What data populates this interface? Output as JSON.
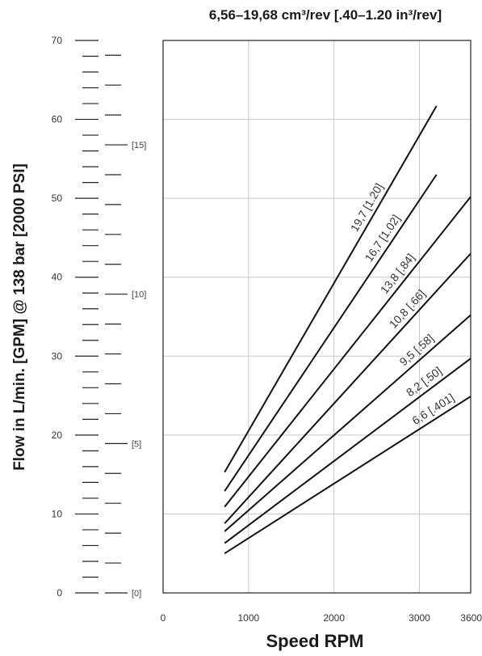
{
  "chart_data": {
    "type": "line",
    "title": "6,56–19,68 cm³/rev [.40–1.20 in³/rev]",
    "xlabel": "Speed RPM",
    "ylabel": "Flow in L/min. [GPM] @ 138 bar [2000 PSI]",
    "xlim": [
      0,
      3600
    ],
    "ylim": [
      0,
      70
    ],
    "x_ticks": [
      "0",
      "1000",
      "2000",
      "3000",
      "3600"
    ],
    "y_ticks": [
      "0",
      "10",
      "20",
      "30",
      "40",
      "50",
      "60",
      "70"
    ],
    "gpm_ticks": [
      {
        "value": 0,
        "label": "[0]"
      },
      {
        "value": 5,
        "label": "[5]"
      },
      {
        "value": 10,
        "label": "[10]"
      },
      {
        "value": 15,
        "label": "[15]"
      }
    ],
    "grid": true,
    "series": [
      {
        "name": "19,7 [1.20]",
        "x": [
          720,
          3200
        ],
        "y": [
          15.3,
          61.7
        ]
      },
      {
        "name": "16,7 [1.02]",
        "x": [
          720,
          3200
        ],
        "y": [
          12.9,
          53.0
        ]
      },
      {
        "name": "13,8 [.84]",
        "x": [
          720,
          3600
        ],
        "y": [
          10.9,
          50.2
        ]
      },
      {
        "name": "10,8 [.66]",
        "x": [
          720,
          3600
        ],
        "y": [
          8.8,
          43.0
        ]
      },
      {
        "name": "9,5 [.58]",
        "x": [
          720,
          3600
        ],
        "y": [
          7.8,
          35.2
        ]
      },
      {
        "name": "8,2 [.50]",
        "x": [
          720,
          3600
        ],
        "y": [
          6.3,
          29.7
        ]
      },
      {
        "name": "6,6 [.401]",
        "x": [
          720,
          3600
        ],
        "y": [
          5.0,
          24.9
        ]
      }
    ]
  }
}
